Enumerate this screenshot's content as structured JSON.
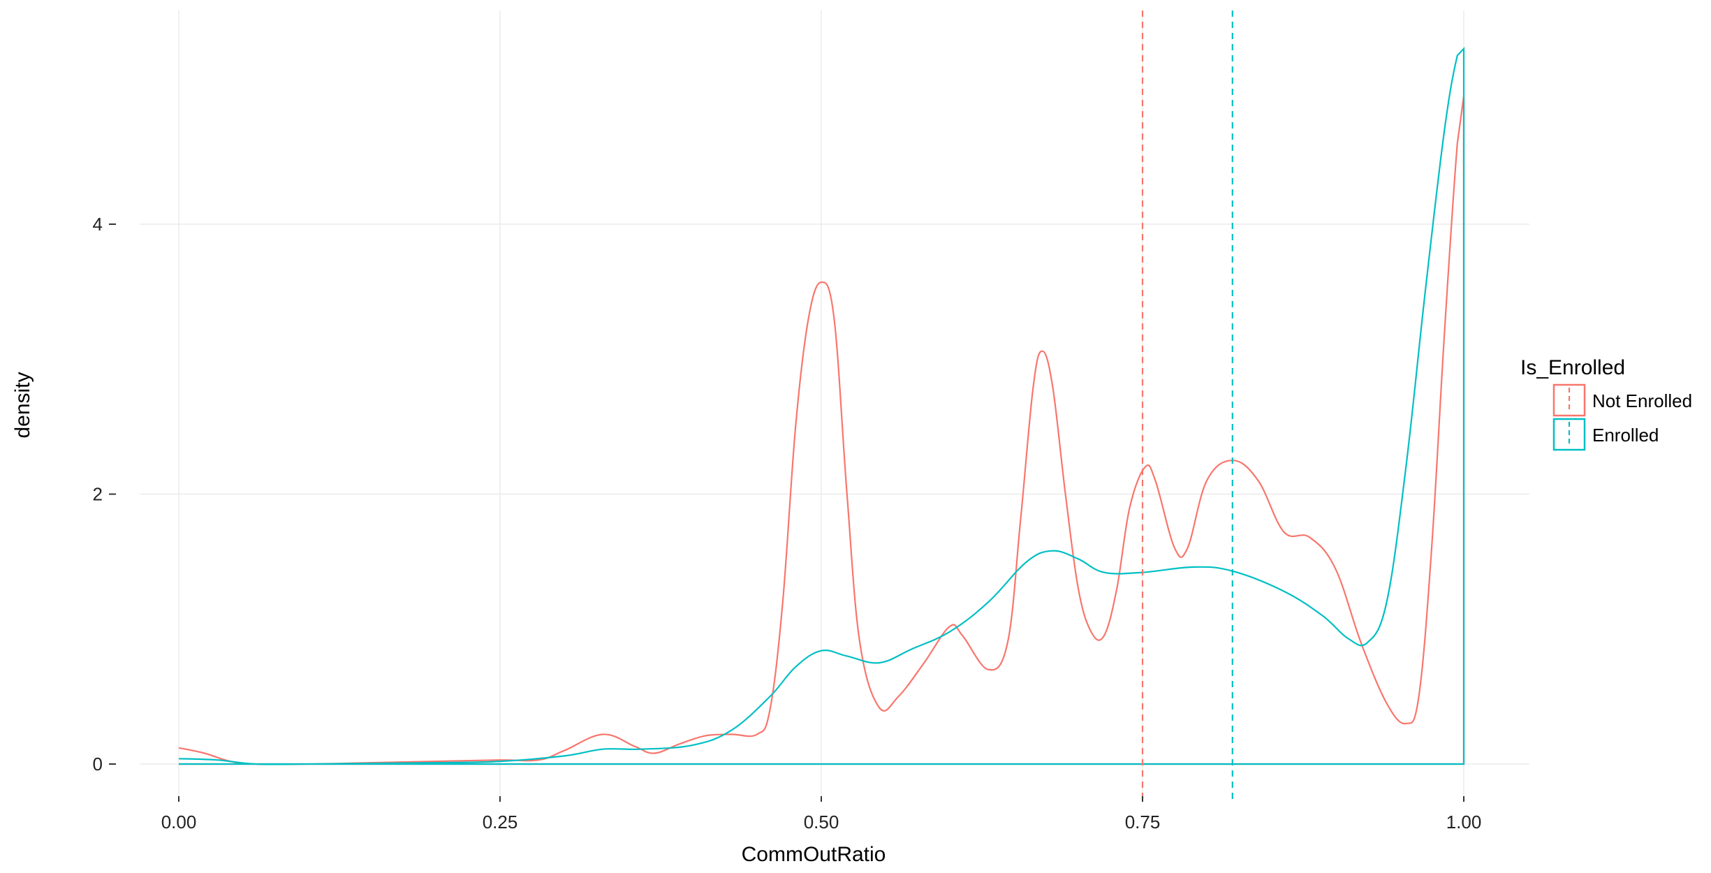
{
  "chart_data": {
    "type": "line",
    "xlabel": "CommOutRatio",
    "ylabel": "density",
    "xlim": [
      -0.05,
      1.05
    ],
    "ylim": [
      -0.28,
      5.6
    ],
    "x_ticks": [
      0,
      0.25,
      0.5,
      0.75,
      1.0
    ],
    "x_tick_labels": [
      "0.00",
      "0.25",
      "0.50",
      "0.75",
      "1.00"
    ],
    "y_ticks": [
      0,
      2,
      4
    ],
    "y_tick_labels": [
      "0",
      "2",
      "4"
    ],
    "grid": true,
    "legend": {
      "title": "Is_Enrolled",
      "position": "right"
    },
    "series": [
      {
        "name": "Not Enrolled",
        "color": "#F8766D",
        "mean_line": 0.75,
        "points": [
          [
            0.0,
            0.12
          ],
          [
            0.02,
            0.08
          ],
          [
            0.04,
            0.02
          ],
          [
            0.06,
            0.0
          ],
          [
            0.1,
            0.0
          ],
          [
            0.15,
            0.01
          ],
          [
            0.2,
            0.02
          ],
          [
            0.25,
            0.03
          ],
          [
            0.28,
            0.03
          ],
          [
            0.3,
            0.1
          ],
          [
            0.33,
            0.22
          ],
          [
            0.355,
            0.13
          ],
          [
            0.37,
            0.08
          ],
          [
            0.39,
            0.15
          ],
          [
            0.41,
            0.21
          ],
          [
            0.43,
            0.22
          ],
          [
            0.45,
            0.22
          ],
          [
            0.46,
            0.4
          ],
          [
            0.47,
            1.2
          ],
          [
            0.48,
            2.5
          ],
          [
            0.49,
            3.3
          ],
          [
            0.5,
            3.57
          ],
          [
            0.51,
            3.3
          ],
          [
            0.52,
            2.0
          ],
          [
            0.53,
            0.9
          ],
          [
            0.545,
            0.42
          ],
          [
            0.56,
            0.5
          ],
          [
            0.58,
            0.75
          ],
          [
            0.6,
            1.02
          ],
          [
            0.61,
            0.95
          ],
          [
            0.63,
            0.7
          ],
          [
            0.645,
            0.9
          ],
          [
            0.655,
            1.8
          ],
          [
            0.665,
            2.8
          ],
          [
            0.672,
            3.06
          ],
          [
            0.68,
            2.8
          ],
          [
            0.69,
            2.0
          ],
          [
            0.7,
            1.3
          ],
          [
            0.71,
            0.98
          ],
          [
            0.72,
            0.95
          ],
          [
            0.73,
            1.3
          ],
          [
            0.74,
            1.9
          ],
          [
            0.752,
            2.2
          ],
          [
            0.76,
            2.1
          ],
          [
            0.775,
            1.6
          ],
          [
            0.785,
            1.6
          ],
          [
            0.8,
            2.1
          ],
          [
            0.82,
            2.25
          ],
          [
            0.84,
            2.1
          ],
          [
            0.86,
            1.72
          ],
          [
            0.88,
            1.68
          ],
          [
            0.9,
            1.45
          ],
          [
            0.92,
            0.9
          ],
          [
            0.94,
            0.45
          ],
          [
            0.955,
            0.3
          ],
          [
            0.965,
            0.5
          ],
          [
            0.975,
            1.6
          ],
          [
            0.985,
            3.2
          ],
          [
            0.995,
            4.6
          ],
          [
            1.0,
            4.95
          ],
          [
            1.0,
            0.0
          ]
        ]
      },
      {
        "name": "Enrolled",
        "color": "#00BFC4",
        "mean_line": 0.82,
        "points": [
          [
            0.0,
            0.04
          ],
          [
            0.03,
            0.03
          ],
          [
            0.06,
            0.0
          ],
          [
            0.1,
            0.0
          ],
          [
            0.2,
            0.01
          ],
          [
            0.25,
            0.02
          ],
          [
            0.3,
            0.06
          ],
          [
            0.33,
            0.11
          ],
          [
            0.36,
            0.11
          ],
          [
            0.4,
            0.14
          ],
          [
            0.43,
            0.25
          ],
          [
            0.46,
            0.5
          ],
          [
            0.48,
            0.72
          ],
          [
            0.5,
            0.84
          ],
          [
            0.52,
            0.8
          ],
          [
            0.545,
            0.75
          ],
          [
            0.57,
            0.85
          ],
          [
            0.6,
            0.98
          ],
          [
            0.63,
            1.2
          ],
          [
            0.66,
            1.5
          ],
          [
            0.68,
            1.58
          ],
          [
            0.7,
            1.52
          ],
          [
            0.72,
            1.42
          ],
          [
            0.75,
            1.42
          ],
          [
            0.79,
            1.46
          ],
          [
            0.82,
            1.43
          ],
          [
            0.86,
            1.28
          ],
          [
            0.89,
            1.1
          ],
          [
            0.91,
            0.93
          ],
          [
            0.925,
            0.9
          ],
          [
            0.94,
            1.2
          ],
          [
            0.955,
            2.2
          ],
          [
            0.97,
            3.5
          ],
          [
            0.985,
            4.7
          ],
          [
            0.995,
            5.25
          ],
          [
            1.0,
            5.3
          ],
          [
            1.0,
            0.0
          ],
          [
            0.0,
            0.0
          ]
        ]
      }
    ]
  }
}
